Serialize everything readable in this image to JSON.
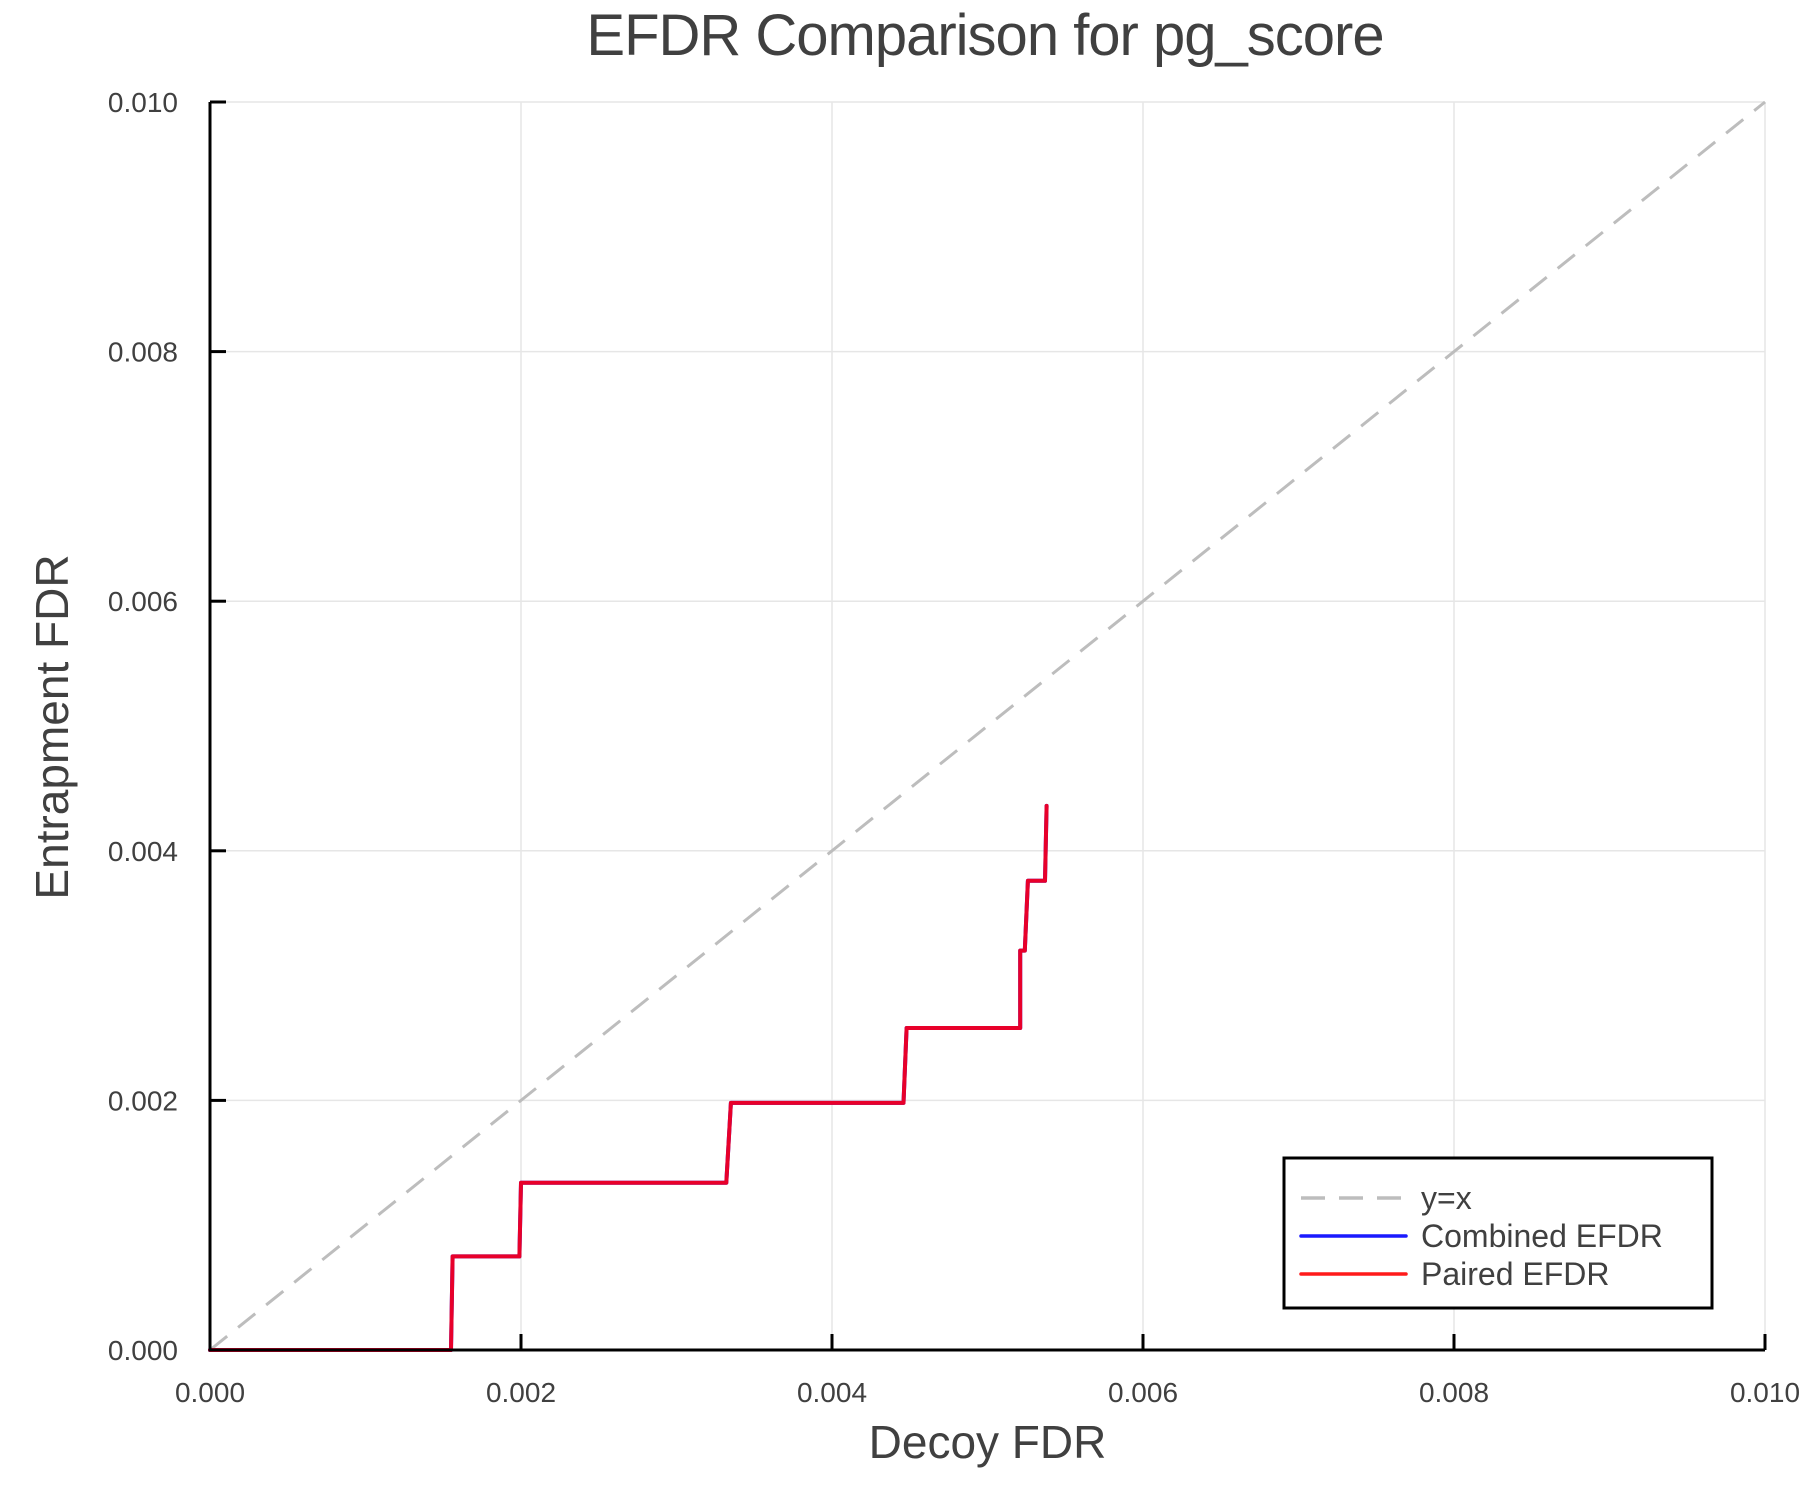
{
  "chart_data": {
    "type": "line",
    "title": "EFDR Comparison for pg_score",
    "xlabel": "Decoy FDR",
    "ylabel": "Entrapment FDR",
    "xlim": [
      0.0,
      0.01
    ],
    "ylim": [
      0.0,
      0.01
    ],
    "xticks": [
      "0.000",
      "0.002",
      "0.004",
      "0.006",
      "0.008",
      "0.010"
    ],
    "yticks": [
      "0.000",
      "0.002",
      "0.004",
      "0.006",
      "0.008",
      "0.010"
    ],
    "grid": true,
    "legend_position": "bottom-right",
    "series": [
      {
        "name": "y=x",
        "color": "#bdbdbd",
        "style": "dashed",
        "x": [
          0.0,
          0.01
        ],
        "y": [
          0.0,
          0.01
        ]
      },
      {
        "name": "Combined EFDR",
        "color": "#1a1aff",
        "style": "solid",
        "x": [
          0.0,
          0.00155,
          0.00156,
          0.00199,
          0.002,
          0.00332,
          0.00335,
          0.00446,
          0.00448,
          0.00521,
          0.00521,
          0.00524,
          0.00526,
          0.00537,
          0.00538
        ],
        "y": [
          0.0,
          0.0,
          0.00075,
          0.00075,
          0.00134,
          0.00134,
          0.00198,
          0.00198,
          0.00258,
          0.00258,
          0.0032,
          0.0032,
          0.00376,
          0.00376,
          0.00436
        ]
      },
      {
        "name": "Paired EFDR",
        "color": "#ff1a1a",
        "style": "solid",
        "x": [
          0.0,
          0.00155,
          0.00156,
          0.00199,
          0.002,
          0.00332,
          0.00335,
          0.00446,
          0.00448,
          0.00521,
          0.00521,
          0.00524,
          0.00526,
          0.00537,
          0.00538
        ],
        "y": [
          0.0,
          0.0,
          0.00075,
          0.00075,
          0.00134,
          0.00134,
          0.00198,
          0.00198,
          0.00258,
          0.00258,
          0.0032,
          0.0032,
          0.00376,
          0.00376,
          0.00436
        ]
      }
    ]
  },
  "legend": {
    "items": [
      {
        "label": "y=x"
      },
      {
        "label": "Combined EFDR"
      },
      {
        "label": "Paired EFDR"
      }
    ]
  }
}
